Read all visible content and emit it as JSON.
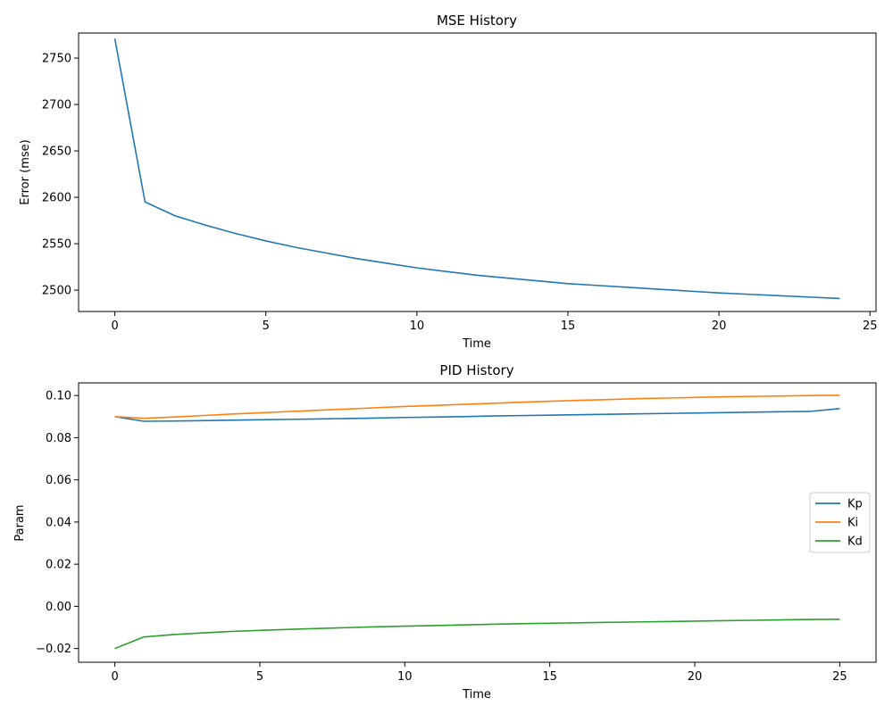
{
  "chart_data": [
    {
      "type": "line",
      "title": "MSE History",
      "xlabel": "Time",
      "ylabel": "Error (mse)",
      "xlim": [
        -1.2,
        25.2
      ],
      "ylim": [
        2477,
        2777
      ],
      "xticks": [
        0,
        5,
        10,
        15,
        20,
        25
      ],
      "yticks": [
        2500,
        2550,
        2600,
        2650,
        2700,
        2750
      ],
      "grid": false,
      "series": [
        {
          "color": "#1f77b4",
          "x": [
            0,
            1,
            2,
            3,
            4,
            5,
            6,
            7,
            8,
            9,
            10,
            11,
            12,
            13,
            14,
            15,
            16,
            17,
            18,
            19,
            20,
            21,
            22,
            23,
            24
          ],
          "values": [
            2771,
            2595,
            2580,
            2570,
            2561,
            2553,
            2546,
            2540,
            2534,
            2529,
            2524,
            2520,
            2516,
            2513,
            2510,
            2507,
            2505,
            2503,
            2501,
            2499,
            2497,
            2495.5,
            2494,
            2492.5,
            2491
          ]
        }
      ]
    },
    {
      "type": "line",
      "title": "PID History",
      "xlabel": "Time",
      "ylabel": "Param",
      "xlim": [
        -1.25,
        26.25
      ],
      "ylim": [
        -0.0265,
        0.106
      ],
      "xticks": [
        0,
        5,
        10,
        15,
        20,
        25
      ],
      "yticks": [
        -0.02,
        0.0,
        0.02,
        0.04,
        0.06,
        0.08,
        0.1
      ],
      "ytick_labels": [
        "−0.02",
        "0.00",
        "0.02",
        "0.04",
        "0.06",
        "0.08",
        "0.10"
      ],
      "grid": false,
      "legend_position": "center-right",
      "x": [
        0,
        1,
        2,
        3,
        4,
        5,
        6,
        7,
        8,
        9,
        10,
        11,
        12,
        13,
        14,
        15,
        16,
        17,
        18,
        19,
        20,
        21,
        22,
        23,
        24,
        25
      ],
      "series": [
        {
          "name": "Kp",
          "color": "#1f77b4",
          "values": [
            0.09,
            0.0878,
            0.0879,
            0.0881,
            0.0883,
            0.0885,
            0.0887,
            0.0889,
            0.0891,
            0.0893,
            0.0896,
            0.0898,
            0.09,
            0.0903,
            0.0905,
            0.0907,
            0.0909,
            0.0911,
            0.0913,
            0.0915,
            0.0917,
            0.0919,
            0.0921,
            0.0923,
            0.0925,
            0.0938
          ]
        },
        {
          "name": "Ki",
          "color": "#ff7f0e",
          "values": [
            0.09,
            0.0892,
            0.0898,
            0.0905,
            0.0912,
            0.0918,
            0.0924,
            0.093,
            0.0936,
            0.0942,
            0.0948,
            0.0953,
            0.0958,
            0.0963,
            0.0968,
            0.0973,
            0.0977,
            0.0981,
            0.0985,
            0.0988,
            0.0991,
            0.0994,
            0.0996,
            0.0998,
            0.1,
            0.1001
          ]
        },
        {
          "name": "Kd",
          "color": "#2ca02c",
          "values": [
            -0.02,
            -0.0145,
            -0.0134,
            -0.0126,
            -0.0119,
            -0.0114,
            -0.0109,
            -0.0105,
            -0.0101,
            -0.0097,
            -0.0094,
            -0.0091,
            -0.0088,
            -0.0085,
            -0.0082,
            -0.008,
            -0.0078,
            -0.0076,
            -0.0074,
            -0.0072,
            -0.007,
            -0.0068,
            -0.0066,
            -0.0064,
            -0.0062,
            -0.0061
          ]
        }
      ]
    }
  ]
}
